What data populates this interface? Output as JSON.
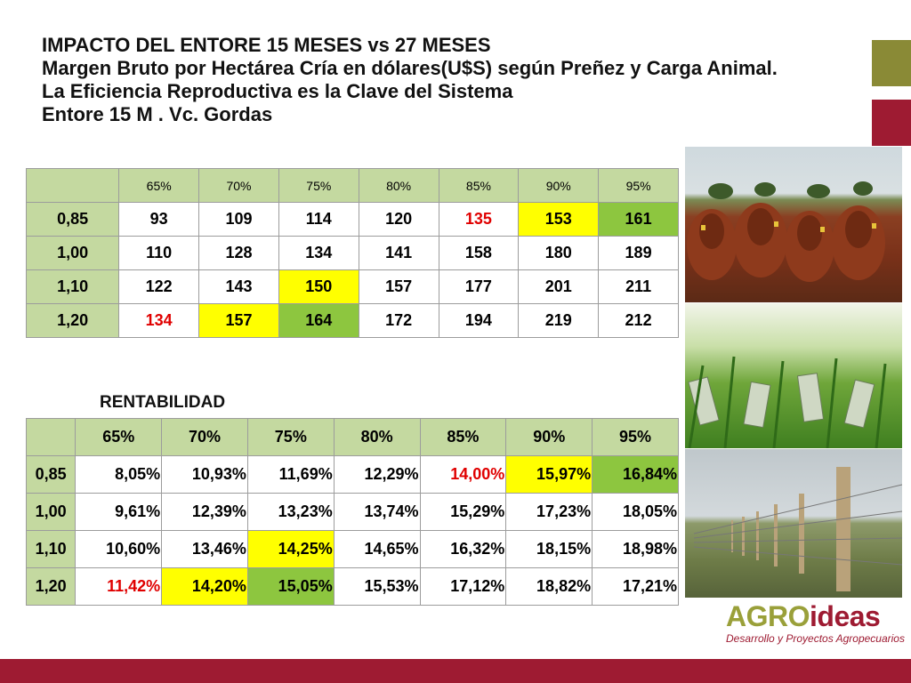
{
  "title": {
    "line1": "IMPACTO DEL ENTORE 15 MESES vs 27 MESES",
    "line2": "Margen Bruto por Hectárea Cría en dólares(U$S) según Preñez y Carga Animal.",
    "line3": "La Eficiencia Reproductiva es la Clave del Sistema",
    "line4": "Entore 15 M . Vc.  Gordas"
  },
  "table1": {
    "headers": [
      "65%",
      "70%",
      "75%",
      "80%",
      "85%",
      "90%",
      "95%"
    ],
    "rows": [
      {
        "label": "0,85",
        "cells": [
          "93",
          "109",
          "114",
          "120",
          "135",
          "153",
          "161"
        ]
      },
      {
        "label": "1,00",
        "cells": [
          "110",
          "128",
          "134",
          "141",
          "158",
          "180",
          "189"
        ]
      },
      {
        "label": "1,10",
        "cells": [
          "122",
          "143",
          "150",
          "157",
          "177",
          "201",
          "211"
        ]
      },
      {
        "label": "1,20",
        "cells": [
          "134",
          "157",
          "164",
          "172",
          "194",
          "219",
          "212"
        ]
      }
    ]
  },
  "rentabilidad_label": "RENTABILIDAD",
  "table2": {
    "headers": [
      "65%",
      "70%",
      "75%",
      "80%",
      "85%",
      "90%",
      "95%"
    ],
    "rows": [
      {
        "label": "0,85",
        "cells": [
          "8,05%",
          "10,93%",
          "11,69%",
          "12,29%",
          "14,00%",
          "15,97%",
          "16,84%"
        ]
      },
      {
        "label": "1,00",
        "cells": [
          "9,61%",
          "12,39%",
          "13,23%",
          "13,74%",
          "15,29%",
          "17,23%",
          "18,05%"
        ]
      },
      {
        "label": "1,10",
        "cells": [
          "10,60%",
          "13,46%",
          "14,25%",
          "14,65%",
          "16,32%",
          "18,15%",
          "18,98%"
        ]
      },
      {
        "label": "1,20",
        "cells": [
          "11,42%",
          "14,20%",
          "15,05%",
          "15,53%",
          "17,12%",
          "18,82%",
          "17,21%"
        ]
      }
    ]
  },
  "logo": {
    "agro": "AGRO",
    "ideas": "ideas",
    "subtitle": "Desarrollo y Proyectos Agropecuarios"
  },
  "colors": {
    "header_bg": "#c4d9a0",
    "highlight_yellow": "#ffff00",
    "highlight_green": "#8dc63f",
    "text_red": "#e00000",
    "accent_red": "#9e1b32",
    "accent_olive": "#8a8a36"
  }
}
